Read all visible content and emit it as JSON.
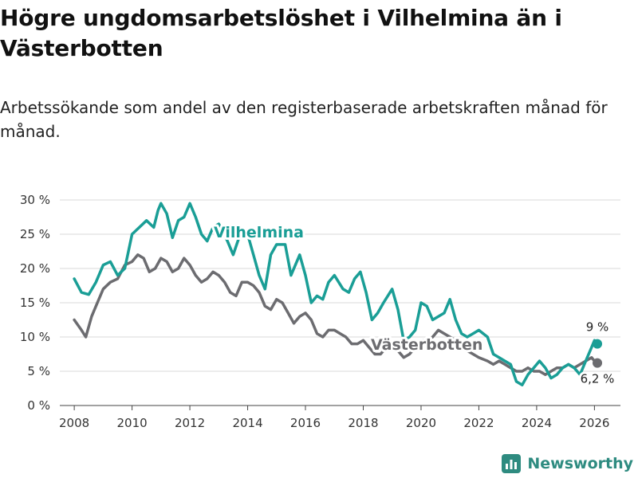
{
  "header": {
    "title": "Högre ungdomsarbetslöshet i Vilhelmina än i Västerbotten",
    "subtitle": "Arbetssökande som andel av den registerbaserade arbetskraften månad för månad."
  },
  "brand": {
    "name": "Newsworthy",
    "color": "#2e8b80"
  },
  "colors": {
    "vilhelmina": "#1a9e96",
    "vasterbotten": "#6c6c70",
    "grid": "#d9d9d9",
    "axis": "#555555"
  },
  "chart_data": {
    "type": "line",
    "title": "Högre ungdomsarbetslöshet i Vilhelmina än i Västerbotten",
    "xlabel": "",
    "ylabel": "",
    "xlim": [
      2007.5,
      2026.9
    ],
    "ylim": [
      0,
      30
    ],
    "x_ticks": [
      2008,
      2010,
      2012,
      2014,
      2016,
      2018,
      2020,
      2022,
      2024,
      2026
    ],
    "x_tick_labels": [
      "2008",
      "2010",
      "2012",
      "2014",
      "2016",
      "2018",
      "2020",
      "2022",
      "2024",
      "2026"
    ],
    "y_ticks": [
      0,
      5,
      10,
      15,
      20,
      25,
      30
    ],
    "y_tick_labels": [
      "0 %",
      "5 %",
      "10 %",
      "15 %",
      "20 %",
      "25 %",
      "30 %"
    ],
    "grid": true,
    "series": [
      {
        "name": "Vilhelmina",
        "label": "Vilhelmina",
        "end_label": "9 %",
        "points": [
          [
            2008.0,
            18.5
          ],
          [
            2008.25,
            16.5
          ],
          [
            2008.5,
            16.2
          ],
          [
            2008.75,
            18.0
          ],
          [
            2009.0,
            20.5
          ],
          [
            2009.25,
            21.0
          ],
          [
            2009.5,
            19.0
          ],
          [
            2009.75,
            20.0
          ],
          [
            2010.0,
            25.0
          ],
          [
            2010.25,
            26.0
          ],
          [
            2010.5,
            27.0
          ],
          [
            2010.75,
            26.0
          ],
          [
            2010.9,
            28.5
          ],
          [
            2011.0,
            29.5
          ],
          [
            2011.2,
            28.0
          ],
          [
            2011.4,
            24.5
          ],
          [
            2011.6,
            27.0
          ],
          [
            2011.8,
            27.5
          ],
          [
            2012.0,
            29.5
          ],
          [
            2012.2,
            27.5
          ],
          [
            2012.4,
            25.0
          ],
          [
            2012.6,
            24.0
          ],
          [
            2012.8,
            26.0
          ],
          [
            2013.0,
            26.5
          ],
          [
            2013.3,
            24.0
          ],
          [
            2013.5,
            22.0
          ],
          [
            2013.7,
            24.5
          ],
          [
            2014.0,
            25.0
          ],
          [
            2014.2,
            22.0
          ],
          [
            2014.4,
            19.0
          ],
          [
            2014.6,
            17.0
          ],
          [
            2014.8,
            22.0
          ],
          [
            2015.0,
            23.5
          ],
          [
            2015.3,
            23.5
          ],
          [
            2015.5,
            19.0
          ],
          [
            2015.8,
            22.0
          ],
          [
            2016.0,
            19.0
          ],
          [
            2016.2,
            15.0
          ],
          [
            2016.4,
            16.0
          ],
          [
            2016.6,
            15.5
          ],
          [
            2016.8,
            18.0
          ],
          [
            2017.0,
            19.0
          ],
          [
            2017.3,
            17.0
          ],
          [
            2017.5,
            16.5
          ],
          [
            2017.7,
            18.5
          ],
          [
            2017.9,
            19.5
          ],
          [
            2018.1,
            16.5
          ],
          [
            2018.3,
            12.5
          ],
          [
            2018.5,
            13.5
          ],
          [
            2018.7,
            15.0
          ],
          [
            2019.0,
            17.0
          ],
          [
            2019.2,
            14.0
          ],
          [
            2019.4,
            9.5
          ],
          [
            2019.6,
            10.0
          ],
          [
            2019.8,
            11.0
          ],
          [
            2020.0,
            15.0
          ],
          [
            2020.2,
            14.5
          ],
          [
            2020.4,
            12.5
          ],
          [
            2020.6,
            13.0
          ],
          [
            2020.8,
            13.5
          ],
          [
            2021.0,
            15.5
          ],
          [
            2021.2,
            12.5
          ],
          [
            2021.4,
            10.5
          ],
          [
            2021.6,
            10.0
          ],
          [
            2021.8,
            10.5
          ],
          [
            2022.0,
            11.0
          ],
          [
            2022.3,
            10.0
          ],
          [
            2022.5,
            7.5
          ],
          [
            2022.7,
            7.0
          ],
          [
            2022.9,
            6.5
          ],
          [
            2023.1,
            6.0
          ],
          [
            2023.3,
            3.5
          ],
          [
            2023.5,
            3.0
          ],
          [
            2023.7,
            4.5
          ],
          [
            2023.9,
            5.5
          ],
          [
            2024.1,
            6.5
          ],
          [
            2024.3,
            5.5
          ],
          [
            2024.5,
            4.0
          ],
          [
            2024.7,
            4.5
          ],
          [
            2024.9,
            5.5
          ],
          [
            2025.1,
            6.0
          ],
          [
            2025.3,
            5.5
          ],
          [
            2025.5,
            4.5
          ],
          [
            2025.7,
            6.5
          ],
          [
            2025.9,
            8.5
          ],
          [
            2026.0,
            9.5
          ],
          [
            2026.1,
            9.0
          ]
        ]
      },
      {
        "name": "Västerbotten",
        "label": "Västerbotten",
        "end_label": "6,2 %",
        "points": [
          [
            2008.0,
            12.5
          ],
          [
            2008.25,
            11.0
          ],
          [
            2008.4,
            10.0
          ],
          [
            2008.6,
            13.0
          ],
          [
            2008.8,
            15.0
          ],
          [
            2009.0,
            17.0
          ],
          [
            2009.25,
            18.0
          ],
          [
            2009.5,
            18.5
          ],
          [
            2009.75,
            20.5
          ],
          [
            2010.0,
            21.0
          ],
          [
            2010.2,
            22.0
          ],
          [
            2010.4,
            21.5
          ],
          [
            2010.6,
            19.5
          ],
          [
            2010.8,
            20.0
          ],
          [
            2011.0,
            21.5
          ],
          [
            2011.2,
            21.0
          ],
          [
            2011.4,
            19.5
          ],
          [
            2011.6,
            20.0
          ],
          [
            2011.8,
            21.5
          ],
          [
            2012.0,
            20.5
          ],
          [
            2012.2,
            19.0
          ],
          [
            2012.4,
            18.0
          ],
          [
            2012.6,
            18.5
          ],
          [
            2012.8,
            19.5
          ],
          [
            2013.0,
            19.0
          ],
          [
            2013.2,
            18.0
          ],
          [
            2013.4,
            16.5
          ],
          [
            2013.6,
            16.0
          ],
          [
            2013.8,
            18.0
          ],
          [
            2014.0,
            18.0
          ],
          [
            2014.2,
            17.5
          ],
          [
            2014.4,
            16.5
          ],
          [
            2014.6,
            14.5
          ],
          [
            2014.8,
            14.0
          ],
          [
            2015.0,
            15.5
          ],
          [
            2015.2,
            15.0
          ],
          [
            2015.4,
            13.5
          ],
          [
            2015.6,
            12.0
          ],
          [
            2015.8,
            13.0
          ],
          [
            2016.0,
            13.5
          ],
          [
            2016.2,
            12.5
          ],
          [
            2016.4,
            10.5
          ],
          [
            2016.6,
            10.0
          ],
          [
            2016.8,
            11.0
          ],
          [
            2017.0,
            11.0
          ],
          [
            2017.2,
            10.5
          ],
          [
            2017.4,
            10.0
          ],
          [
            2017.6,
            9.0
          ],
          [
            2017.8,
            9.0
          ],
          [
            2018.0,
            9.5
          ],
          [
            2018.2,
            8.5
          ],
          [
            2018.4,
            7.5
          ],
          [
            2018.6,
            7.5
          ],
          [
            2018.8,
            8.5
          ],
          [
            2019.0,
            8.5
          ],
          [
            2019.2,
            8.0
          ],
          [
            2019.4,
            7.0
          ],
          [
            2019.6,
            7.5
          ],
          [
            2019.8,
            8.5
          ],
          [
            2020.0,
            9.5
          ],
          [
            2020.2,
            9.5
          ],
          [
            2020.4,
            10.0
          ],
          [
            2020.6,
            11.0
          ],
          [
            2020.8,
            10.5
          ],
          [
            2021.0,
            10.0
          ],
          [
            2021.2,
            9.5
          ],
          [
            2021.4,
            8.5
          ],
          [
            2021.6,
            8.0
          ],
          [
            2021.8,
            7.5
          ],
          [
            2022.0,
            7.0
          ],
          [
            2022.3,
            6.5
          ],
          [
            2022.5,
            6.0
          ],
          [
            2022.7,
            6.5
          ],
          [
            2022.9,
            6.0
          ],
          [
            2023.1,
            5.5
          ],
          [
            2023.3,
            5.0
          ],
          [
            2023.5,
            5.0
          ],
          [
            2023.7,
            5.5
          ],
          [
            2023.9,
            5.0
          ],
          [
            2024.1,
            5.0
          ],
          [
            2024.3,
            4.5
          ],
          [
            2024.5,
            5.0
          ],
          [
            2024.7,
            5.5
          ],
          [
            2024.9,
            5.5
          ],
          [
            2025.1,
            6.0
          ],
          [
            2025.3,
            5.5
          ],
          [
            2025.5,
            6.0
          ],
          [
            2025.7,
            6.5
          ],
          [
            2025.9,
            7.0
          ],
          [
            2026.0,
            6.5
          ],
          [
            2026.1,
            6.2
          ]
        ]
      }
    ]
  }
}
